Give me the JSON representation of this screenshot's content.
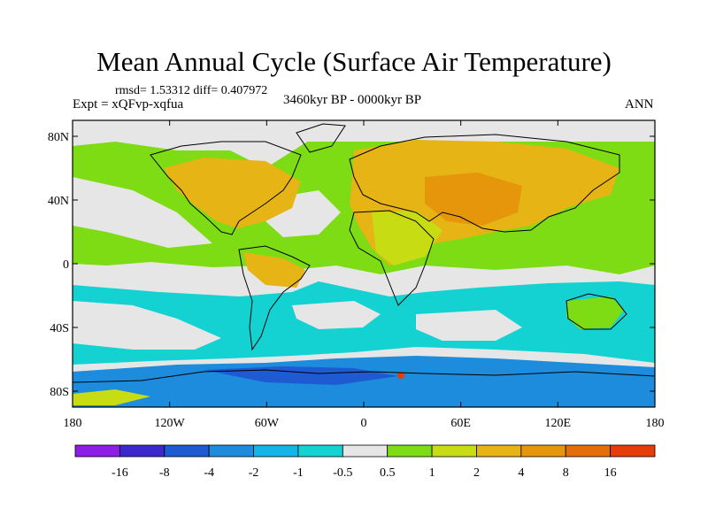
{
  "header": {
    "title": "Mean Annual Cycle (Surface Air Temperature)",
    "stats": "rmsd= 1.53312 diff= 0.407972",
    "experiment": "Expt = xQFvp-xqfua",
    "period": "3460kyr BP - 0000kyr BP",
    "season": "ANN"
  },
  "map": {
    "lat_ticks": [
      {
        "label": "80N",
        "lat": 80
      },
      {
        "label": "40N",
        "lat": 40
      },
      {
        "label": "0",
        "lat": 0
      },
      {
        "label": "40S",
        "lat": -40
      },
      {
        "label": "80S",
        "lat": -80
      }
    ],
    "lon_ticks": [
      {
        "label": "180",
        "lon": -180
      },
      {
        "label": "120W",
        "lon": -120
      },
      {
        "label": "60W",
        "lon": -60
      },
      {
        "label": "0",
        "lon": 0
      },
      {
        "label": "60E",
        "lon": 60
      },
      {
        "label": "120E",
        "lon": 120
      },
      {
        "label": "180",
        "lon": 180
      }
    ]
  },
  "colorbar": {
    "colors": [
      "#8c1ee6",
      "#3c28cc",
      "#1e5ad2",
      "#1e8cdc",
      "#14b4e6",
      "#14d2d2",
      "#e6e6e6",
      "#7ddc14",
      "#c8dc14",
      "#e6b414",
      "#e6960a",
      "#e66e0a",
      "#e63c0a"
    ],
    "labels": [
      "-16",
      "-8",
      "-4",
      "-2",
      "-1",
      "-0.5",
      "0.5",
      "1",
      "2",
      "4",
      "8",
      "16"
    ]
  }
}
